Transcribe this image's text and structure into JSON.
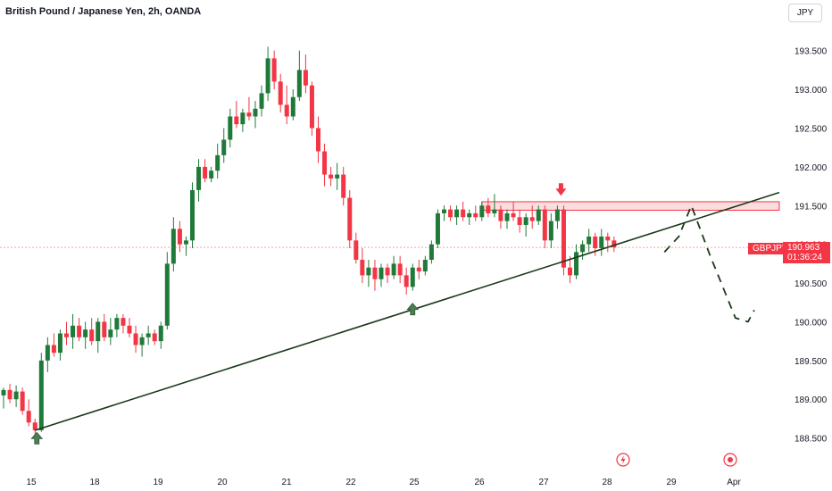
{
  "header": {
    "title": "British Pound / Japanese Yen, 2h, OANDA",
    "currency_label": "JPY"
  },
  "price_badge": {
    "symbol": "GBPJPY",
    "price": "190.963",
    "countdown": "01:36:24"
  },
  "colors": {
    "up": "#26a69a",
    "down": "#f23645",
    "up_candle": "#1f7a3a",
    "trendline": "#1a3a1a",
    "arrow_up": "#4d7d55",
    "zone_fill": "#f8c5c9",
    "zone_stroke": "#f23645"
  },
  "chart_data": {
    "type": "candlestick",
    "title": "British Pound / Japanese Yen, 2h, OANDA",
    "ylim": [
      188.3,
      193.75
    ],
    "y_ticks": [
      "193.500",
      "193.000",
      "192.500",
      "192.000",
      "191.500",
      "191.000",
      "190.500",
      "190.000",
      "189.500",
      "189.000",
      "188.500"
    ],
    "x_ticks": [
      "15",
      "18",
      "19",
      "20",
      "21",
      "22",
      "25",
      "26",
      "27",
      "28",
      "29",
      "Apr"
    ],
    "candles": [
      [
        189.05,
        189.15,
        188.88,
        189.12
      ],
      [
        189.12,
        189.2,
        188.95,
        189.0
      ],
      [
        189.0,
        189.18,
        188.9,
        189.1
      ],
      [
        189.1,
        189.15,
        188.8,
        188.85
      ],
      [
        188.85,
        189.0,
        188.65,
        188.7
      ],
      [
        188.7,
        188.75,
        188.55,
        188.6
      ],
      [
        188.6,
        189.6,
        188.58,
        189.5
      ],
      [
        189.5,
        189.8,
        189.35,
        189.7
      ],
      [
        189.7,
        189.85,
        189.55,
        189.6
      ],
      [
        189.6,
        189.9,
        189.5,
        189.85
      ],
      [
        189.85,
        190.0,
        189.7,
        189.8
      ],
      [
        189.8,
        190.1,
        189.65,
        189.95
      ],
      [
        189.95,
        190.05,
        189.75,
        189.8
      ],
      [
        189.8,
        190.0,
        189.65,
        189.9
      ],
      [
        189.9,
        190.05,
        189.7,
        189.75
      ],
      [
        189.75,
        190.05,
        189.6,
        190.0
      ],
      [
        190.0,
        190.1,
        189.75,
        189.8
      ],
      [
        189.8,
        190.05,
        189.7,
        189.9
      ],
      [
        189.9,
        190.1,
        189.8,
        190.05
      ],
      [
        190.05,
        190.1,
        189.85,
        189.95
      ],
      [
        189.95,
        190.05,
        189.8,
        189.85
      ],
      [
        189.85,
        189.95,
        189.6,
        189.7
      ],
      [
        189.7,
        189.85,
        189.55,
        189.8
      ],
      [
        189.8,
        189.95,
        189.7,
        189.85
      ],
      [
        189.85,
        189.9,
        189.7,
        189.75
      ],
      [
        189.75,
        190.0,
        189.65,
        189.95
      ],
      [
        189.95,
        190.9,
        189.9,
        190.75
      ],
      [
        190.75,
        191.35,
        190.65,
        191.2
      ],
      [
        191.2,
        191.3,
        190.9,
        191.0
      ],
      [
        191.0,
        191.1,
        190.85,
        191.05
      ],
      [
        191.05,
        191.8,
        190.95,
        191.7
      ],
      [
        191.7,
        192.1,
        191.55,
        192.0
      ],
      [
        192.0,
        192.1,
        191.8,
        191.85
      ],
      [
        191.85,
        192.0,
        191.8,
        191.95
      ],
      [
        191.95,
        192.3,
        191.85,
        192.15
      ],
      [
        192.15,
        192.5,
        192.05,
        192.35
      ],
      [
        192.35,
        192.75,
        192.25,
        192.65
      ],
      [
        192.65,
        192.85,
        192.5,
        192.55
      ],
      [
        192.55,
        192.75,
        192.45,
        192.7
      ],
      [
        192.7,
        192.9,
        192.6,
        192.65
      ],
      [
        192.65,
        192.85,
        192.5,
        192.75
      ],
      [
        192.75,
        193.05,
        192.65,
        192.95
      ],
      [
        192.95,
        193.55,
        192.85,
        193.4
      ],
      [
        193.4,
        193.5,
        193.0,
        193.1
      ],
      [
        193.1,
        193.2,
        192.7,
        192.8
      ],
      [
        192.8,
        193.05,
        192.55,
        192.65
      ],
      [
        192.65,
        193.0,
        192.6,
        192.9
      ],
      [
        192.9,
        193.5,
        192.85,
        193.25
      ],
      [
        193.25,
        193.45,
        192.95,
        193.05
      ],
      [
        193.05,
        193.1,
        192.4,
        192.5
      ],
      [
        192.5,
        192.65,
        192.05,
        192.2
      ],
      [
        192.2,
        192.3,
        191.75,
        191.9
      ],
      [
        191.9,
        192.0,
        191.75,
        191.85
      ],
      [
        191.85,
        192.05,
        191.7,
        191.9
      ],
      [
        191.9,
        192.0,
        191.5,
        191.6
      ],
      [
        191.6,
        191.7,
        190.95,
        191.05
      ],
      [
        191.05,
        191.15,
        190.75,
        190.8
      ],
      [
        190.8,
        190.95,
        190.5,
        190.6
      ],
      [
        190.6,
        190.8,
        190.45,
        190.7
      ],
      [
        190.7,
        190.8,
        190.4,
        190.55
      ],
      [
        190.55,
        190.75,
        190.45,
        190.7
      ],
      [
        190.7,
        190.75,
        190.5,
        190.6
      ],
      [
        190.6,
        190.85,
        190.55,
        190.75
      ],
      [
        190.75,
        190.85,
        190.5,
        190.6
      ],
      [
        190.6,
        190.7,
        190.35,
        190.45
      ],
      [
        190.45,
        190.75,
        190.4,
        190.7
      ],
      [
        190.7,
        190.8,
        190.55,
        190.65
      ],
      [
        190.65,
        190.85,
        190.6,
        190.8
      ],
      [
        190.8,
        191.05,
        190.75,
        191.0
      ],
      [
        191.0,
        191.45,
        190.95,
        191.4
      ],
      [
        191.4,
        191.5,
        191.3,
        191.45
      ],
      [
        191.45,
        191.5,
        191.3,
        191.35
      ],
      [
        191.35,
        191.5,
        191.25,
        191.45
      ],
      [
        191.45,
        191.55,
        191.3,
        191.35
      ],
      [
        191.35,
        191.45,
        191.25,
        191.4
      ],
      [
        191.4,
        191.5,
        191.3,
        191.35
      ],
      [
        191.35,
        191.55,
        191.3,
        191.5
      ],
      [
        191.5,
        191.6,
        191.35,
        191.4
      ],
      [
        191.4,
        191.65,
        191.35,
        191.45
      ],
      [
        191.45,
        191.5,
        191.2,
        191.3
      ],
      [
        191.3,
        191.45,
        191.2,
        191.4
      ],
      [
        191.4,
        191.55,
        191.3,
        191.35
      ],
      [
        191.35,
        191.45,
        191.15,
        191.25
      ],
      [
        191.25,
        191.4,
        191.1,
        191.35
      ],
      [
        191.35,
        191.5,
        191.2,
        191.3
      ],
      [
        191.3,
        191.5,
        191.25,
        191.45
      ],
      [
        191.45,
        191.5,
        190.95,
        191.05
      ],
      [
        191.05,
        191.4,
        190.95,
        191.3
      ],
      [
        191.3,
        191.5,
        191.2,
        191.45
      ],
      [
        191.45,
        191.5,
        190.6,
        190.7
      ],
      [
        190.7,
        190.85,
        190.5,
        190.6
      ],
      [
        190.6,
        191.0,
        190.55,
        190.9
      ],
      [
        190.9,
        191.05,
        190.8,
        191.0
      ],
      [
        191.0,
        191.2,
        190.9,
        191.1
      ],
      [
        191.1,
        191.15,
        190.85,
        190.95
      ],
      [
        190.95,
        191.2,
        190.85,
        191.1
      ],
      [
        191.1,
        191.15,
        190.9,
        191.05
      ],
      [
        191.05,
        191.1,
        190.9,
        190.96
      ]
    ],
    "annotations": {
      "trendline": {
        "from": [
          5,
          188.6
        ],
        "to": [
          119,
          191.6
        ]
      },
      "resistance_zone": {
        "x_from": 76,
        "x_to": 119,
        "y_low": 191.44,
        "y_high": 191.55
      },
      "arrow_up_1": {
        "x": 5,
        "y": 188.55
      },
      "arrow_up_2": {
        "x": 65,
        "y": 190.32
      },
      "arrow_down": {
        "x": 88,
        "y": 191.65
      },
      "projection": [
        [
          105,
          190.9
        ],
        [
          107,
          191.1
        ],
        [
          109,
          191.5
        ],
        [
          112,
          190.85
        ],
        [
          116,
          190.05
        ],
        [
          118,
          190.0
        ],
        [
          119,
          190.15
        ]
      ]
    }
  }
}
